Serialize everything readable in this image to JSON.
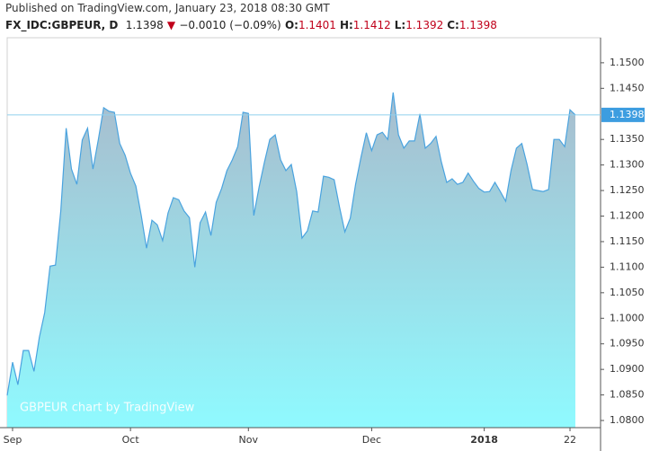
{
  "header": {
    "published": "Published on TradingView.com, January 23, 2018 08:30 GMT",
    "symbol": "FX_IDC:GBPEUR, D",
    "last": "1.1398",
    "change": "−0.0010 (−0.09%)",
    "ohlc": [
      {
        "label": "O:",
        "value": "1.1401"
      },
      {
        "label": "H:",
        "value": "1.1412"
      },
      {
        "label": "L:",
        "value": "1.1392"
      },
      {
        "label": "C:",
        "value": "1.1398"
      }
    ]
  },
  "chart_data": {
    "type": "area",
    "watermark": "GBPEUR chart by TradingView",
    "series": [
      {
        "name": "GBPEUR",
        "color": "#4aa3df",
        "x": [
          0,
          1,
          2,
          3,
          4,
          5,
          6,
          7,
          8,
          9,
          10,
          11,
          12,
          13,
          14,
          15,
          16,
          17,
          18,
          19,
          20,
          21,
          22,
          23,
          24,
          25,
          26,
          27,
          28,
          29,
          30,
          31,
          32,
          33,
          34,
          35,
          36,
          37,
          38,
          39,
          40,
          41,
          42,
          43,
          44,
          45,
          46,
          47,
          48,
          49,
          50,
          51,
          52,
          53,
          54,
          55,
          56,
          57,
          58,
          59,
          60,
          61,
          62,
          63,
          64,
          65,
          66,
          67,
          68,
          69,
          70,
          71,
          72,
          73,
          74,
          75,
          76,
          77,
          78,
          79,
          80,
          81,
          82,
          83,
          84,
          85,
          86,
          87,
          88,
          89,
          90,
          91,
          92,
          93,
          94,
          95,
          96,
          97,
          98,
          99,
          100,
          101,
          102,
          103,
          104,
          105,
          106
        ],
        "values": [
          1.0849,
          1.0914,
          1.087,
          1.0937,
          1.0937,
          1.0896,
          1.0963,
          1.1011,
          1.1102,
          1.1104,
          1.121,
          1.1372,
          1.1292,
          1.1262,
          1.1349,
          1.1372,
          1.1292,
          1.135,
          1.1412,
          1.1405,
          1.1403,
          1.1342,
          1.1319,
          1.1284,
          1.1259,
          1.1201,
          1.1137,
          1.1192,
          1.1183,
          1.1152,
          1.1206,
          1.1236,
          1.1232,
          1.121,
          1.1197,
          1.11,
          1.1187,
          1.1208,
          1.1162,
          1.1227,
          1.1254,
          1.1289,
          1.131,
          1.1336,
          1.1403,
          1.1401,
          1.1201,
          1.1257,
          1.1306,
          1.135,
          1.1359,
          1.131,
          1.1289,
          1.1301,
          1.1248,
          1.1157,
          1.1171,
          1.121,
          1.1208,
          1.1278,
          1.1276,
          1.1271,
          1.1218,
          1.1169,
          1.1196,
          1.1262,
          1.1315,
          1.1363,
          1.1328,
          1.1359,
          1.1364,
          1.135,
          1.1442,
          1.1359,
          1.1333,
          1.1347,
          1.1347,
          1.14,
          1.1333,
          1.1342,
          1.1356,
          1.1306,
          1.1266,
          1.1273,
          1.1262,
          1.1266,
          1.1284,
          1.1268,
          1.1254,
          1.1247,
          1.1248,
          1.1266,
          1.1248,
          1.1229,
          1.1289,
          1.1333,
          1.1342,
          1.1301,
          1.1252,
          1.125,
          1.1248,
          1.1252,
          1.135,
          1.135,
          1.1336,
          1.1408,
          1.1398
        ]
      }
    ],
    "last_value": 1.1398,
    "last_color": "#3d9de0",
    "xlim": [
      0,
      110.7
    ],
    "xticks": [
      {
        "value": 1,
        "label": "Sep"
      },
      {
        "value": 23,
        "label": "Oct"
      },
      {
        "value": 45,
        "label": "Nov"
      },
      {
        "value": 68,
        "label": "Dec"
      },
      {
        "value": 89,
        "label": "2018"
      },
      {
        "value": 105,
        "label": "22"
      }
    ],
    "ylim": [
      1.0786,
      1.1549
    ],
    "yticks": [
      {
        "value": 1.08,
        "label": "1.0800"
      },
      {
        "value": 1.085,
        "label": "1.0850"
      },
      {
        "value": 1.09,
        "label": "1.0900"
      },
      {
        "value": 1.095,
        "label": "1.0950"
      },
      {
        "value": 1.1,
        "label": "1.1000"
      },
      {
        "value": 1.105,
        "label": "1.1050"
      },
      {
        "value": 1.11,
        "label": "1.1100"
      },
      {
        "value": 1.115,
        "label": "1.1150"
      },
      {
        "value": 1.12,
        "label": "1.1200"
      },
      {
        "value": 1.125,
        "label": "1.1250"
      },
      {
        "value": 1.13,
        "label": "1.1300"
      },
      {
        "value": 1.135,
        "label": "1.1350"
      },
      {
        "value": 1.145,
        "label": "1.1450"
      },
      {
        "value": 1.15,
        "label": "1.1500"
      }
    ]
  }
}
